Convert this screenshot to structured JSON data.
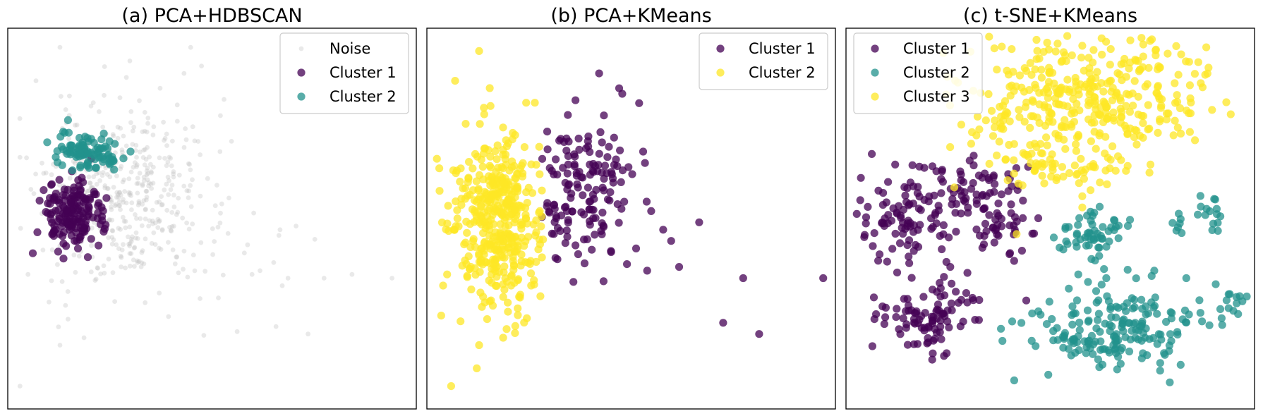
{
  "chart_data": [
    {
      "type": "scatter",
      "title": "(a) PCA+HDBSCAN",
      "xlim": [
        0,
        100
      ],
      "ylim": [
        0,
        100
      ],
      "legend_position": "top-right",
      "series": [
        {
          "name": "Noise",
          "color": "#bfbfbf",
          "opacity": 0.35,
          "size": "small",
          "seed": 11,
          "blobs": [
            {
              "cx": 26,
              "cy": 58,
              "sx": 9,
              "sy": 11,
              "n": 380
            },
            {
              "cx": 35,
              "cy": 50,
              "sx": 16,
              "sy": 12,
              "n": 110
            }
          ],
          "points": [
            [
              12,
              96
            ],
            [
              6,
              87
            ],
            [
              43,
              89
            ],
            [
              53,
              82
            ],
            [
              34,
              77
            ],
            [
              11,
              64
            ],
            [
              52,
              68
            ],
            [
              54,
              46
            ],
            [
              62,
              36
            ],
            [
              67,
              47
            ],
            [
              69,
              34
            ],
            [
              78,
              34
            ],
            [
              95,
              34
            ],
            [
              66,
              21
            ],
            [
              74,
              19
            ],
            [
              12,
              16
            ],
            [
              18,
              18
            ],
            [
              14,
              23
            ],
            [
              4,
              35
            ],
            [
              2,
              5
            ],
            [
              60,
              35
            ],
            [
              71,
              48
            ],
            [
              85,
              35
            ],
            [
              38,
              71
            ]
          ]
        },
        {
          "name": "Cluster 1",
          "color": "#440154",
          "opacity": 0.75,
          "size": "large",
          "seed": 23,
          "blobs": [
            {
              "cx": 15,
              "cy": 51,
              "sx": 3.8,
              "sy": 4.6,
              "n": 170
            }
          ],
          "points": []
        },
        {
          "name": "Cluster 2",
          "color": "#21918c",
          "opacity": 0.75,
          "size": "large",
          "seed": 37,
          "blobs": [
            {
              "cx": 18,
              "cy": 69,
              "sx": 3.4,
              "sy": 2.4,
              "n": 70
            },
            {
              "cx": 23,
              "cy": 66,
              "sx": 3.2,
              "sy": 1.7,
              "n": 25
            }
          ],
          "points": []
        }
      ]
    },
    {
      "type": "scatter",
      "title": "(b) PCA+KMeans",
      "xlim": [
        0,
        100
      ],
      "ylim": [
        0,
        100
      ],
      "legend_position": "top-right",
      "series": [
        {
          "name": "Cluster 1",
          "color": "#440154",
          "opacity": 0.75,
          "size": "large",
          "seed": 51,
          "blobs": [
            {
              "cx": 37,
              "cy": 57,
              "sx": 5.8,
              "sy": 10,
              "n": 150,
              "xmin": 27
            }
          ],
          "points": [
            [
              42,
              89
            ],
            [
              52,
              81
            ],
            [
              47,
              85
            ],
            [
              53,
              68
            ],
            [
              55,
              52
            ],
            [
              67,
              49
            ],
            [
              62,
              37
            ],
            [
              54,
              36
            ],
            [
              78,
              34
            ],
            [
              98,
              34
            ],
            [
              73,
              22
            ],
            [
              82,
              19
            ],
            [
              58,
              47
            ],
            [
              45,
              41
            ],
            [
              60,
              44
            ]
          ]
        },
        {
          "name": "Cluster 2",
          "color": "#fde725",
          "opacity": 0.75,
          "size": "large",
          "seed": 67,
          "blobs": [
            {
              "cx": 17,
              "cy": 50,
              "sx": 5.8,
              "sy": 11,
              "n": 430,
              "xmax": 28
            }
          ],
          "points": [
            [
              12,
              95
            ],
            [
              6,
              87
            ],
            [
              4,
              35
            ],
            [
              3,
              32
            ],
            [
              13,
              29
            ],
            [
              14,
              23
            ],
            [
              12,
              16
            ],
            [
              18,
              18
            ],
            [
              5,
              5
            ],
            [
              25,
              32
            ],
            [
              20,
              32
            ],
            [
              22,
              29
            ]
          ]
        }
      ]
    },
    {
      "type": "scatter",
      "title": "(c) t-SNE+KMeans",
      "xlim": [
        0,
        100
      ],
      "ylim": [
        0,
        100
      ],
      "legend_position": "top-left",
      "series": [
        {
          "name": "Cluster 1",
          "color": "#440154",
          "opacity": 0.75,
          "size": "large",
          "seed": 79,
          "blobs": [
            {
              "cx": 14,
              "cy": 49,
              "sx": 7,
              "sy": 6,
              "n": 95
            },
            {
              "cx": 32,
              "cy": 57,
              "sx": 7,
              "sy": 5,
              "n": 75
            },
            {
              "cx": 18,
              "cy": 24,
              "sx": 7,
              "sy": 5,
              "n": 95
            },
            {
              "cx": 40,
              "cy": 46,
              "sx": 4,
              "sy": 4,
              "n": 25
            }
          ],
          "points": [
            [
              25,
              37
            ],
            [
              29,
              30
            ],
            [
              44,
              28
            ]
          ]
        },
        {
          "name": "Cluster 2",
          "color": "#21918c",
          "opacity": 0.75,
          "size": "large",
          "seed": 97,
          "blobs": [
            {
              "cx": 60,
              "cy": 46,
              "sx": 4.5,
              "sy": 3,
              "n": 55
            },
            {
              "cx": 66,
              "cy": 20,
              "sx": 11,
              "sy": 6,
              "n": 190
            },
            {
              "cx": 88,
              "cy": 50,
              "sx": 4,
              "sy": 3,
              "n": 22
            },
            {
              "cx": 95,
              "cy": 27,
              "sx": 2,
              "sy": 3,
              "n": 12
            }
          ],
          "points": [
            [
              76,
              36
            ],
            [
              84,
              34
            ],
            [
              57,
              35
            ],
            [
              64,
              34
            ]
          ]
        },
        {
          "name": "Cluster 3",
          "color": "#fde725",
          "opacity": 0.75,
          "size": "large",
          "seed": 113,
          "blobs": [
            {
              "cx": 53,
              "cy": 82,
              "sx": 12,
              "sy": 9,
              "n": 280
            },
            {
              "cx": 76,
              "cy": 83,
              "sx": 8,
              "sy": 8,
              "n": 90
            },
            {
              "cx": 46,
              "cy": 64,
              "sx": 5,
              "sy": 3.5,
              "n": 35
            },
            {
              "cx": 63,
              "cy": 62,
              "sx": 5,
              "sy": 3,
              "n": 25
            }
          ],
          "points": [
            [
              89,
              96
            ],
            [
              87,
              92
            ],
            [
              58,
              56
            ],
            [
              58,
              53
            ]
          ]
        }
      ]
    }
  ]
}
